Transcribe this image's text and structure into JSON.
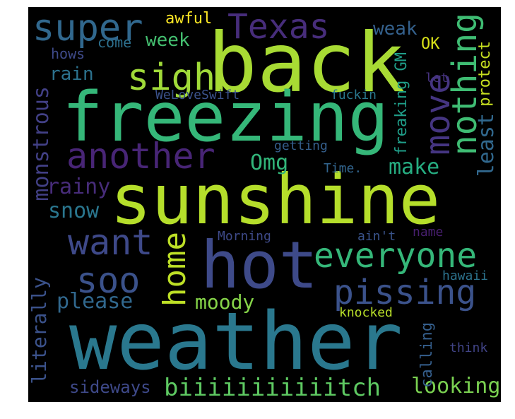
{
  "words": [
    {
      "text": "weather",
      "color": "#2a788e",
      "orientation": "horizontal"
    },
    {
      "text": "sunshine",
      "color": "#b5de2b",
      "orientation": "horizontal"
    },
    {
      "text": "back",
      "color": "#a8db34",
      "orientation": "horizontal"
    },
    {
      "text": "freezing",
      "color": "#35b779",
      "orientation": "horizontal"
    },
    {
      "text": "hot",
      "color": "#3e4a89",
      "orientation": "horizontal"
    },
    {
      "text": "Texas",
      "color": "#472d7b",
      "orientation": "horizontal"
    },
    {
      "text": "super",
      "color": "#31688e",
      "orientation": "horizontal"
    },
    {
      "text": "sigh",
      "color": "#a0da39",
      "orientation": "horizontal"
    },
    {
      "text": "another",
      "color": "#482576",
      "orientation": "horizontal"
    },
    {
      "text": "everyone",
      "color": "#35b779",
      "orientation": "horizontal"
    },
    {
      "text": "pissing",
      "color": "#3b528b",
      "orientation": "horizontal"
    },
    {
      "text": "want",
      "color": "#3e4989",
      "orientation": "horizontal"
    },
    {
      "text": "soo",
      "color": "#3b528b",
      "orientation": "horizontal"
    },
    {
      "text": "home",
      "color": "#bddf26",
      "orientation": "vertical"
    },
    {
      "text": "move",
      "color": "#453581",
      "orientation": "vertical"
    },
    {
      "text": "nothing",
      "color": "#3fbc73",
      "orientation": "vertical"
    },
    {
      "text": "biiiiiiiiiiitch",
      "color": "#5ec962",
      "orientation": "horizontal"
    },
    {
      "text": "make",
      "color": "#26ad81",
      "orientation": "horizontal"
    },
    {
      "text": "Omg",
      "color": "#32b67a",
      "orientation": "horizontal"
    },
    {
      "text": "please",
      "color": "#31688e",
      "orientation": "horizontal"
    },
    {
      "text": "moody",
      "color": "#86d549",
      "orientation": "horizontal"
    },
    {
      "text": "looking",
      "color": "#7ad151",
      "orientation": "horizontal"
    },
    {
      "text": "snow",
      "color": "#2a768e",
      "orientation": "horizontal"
    },
    {
      "text": "rainy",
      "color": "#472c7a",
      "orientation": "horizontal"
    },
    {
      "text": "rain",
      "color": "#2c728e",
      "orientation": "horizontal"
    },
    {
      "text": "week",
      "color": "#44bf70",
      "orientation": "horizontal"
    },
    {
      "text": "weak",
      "color": "#34618d",
      "orientation": "horizontal"
    },
    {
      "text": "awful",
      "color": "#fde725",
      "orientation": "horizontal"
    },
    {
      "text": "sideways",
      "color": "#3e4989",
      "orientation": "horizontal"
    },
    {
      "text": "monstrous",
      "color": "#424086",
      "orientation": "vertical"
    },
    {
      "text": "literally",
      "color": "#3b528b",
      "orientation": "vertical"
    },
    {
      "text": "least",
      "color": "#31688e",
      "orientation": "vertical"
    },
    {
      "text": "freaking GM",
      "color": "#1f9e89",
      "orientation": "vertical"
    },
    {
      "text": "protect",
      "color": "#c8e020",
      "orientation": "vertical"
    },
    {
      "text": "calling",
      "color": "#355f8d",
      "orientation": "vertical"
    },
    {
      "text": "hows",
      "color": "#3e4a89",
      "orientation": "horizontal"
    },
    {
      "text": "come",
      "color": "#2d708e",
      "orientation": "horizontal"
    },
    {
      "text": "OK",
      "color": "#d8e219",
      "orientation": "horizontal"
    },
    {
      "text": "let",
      "color": "#46327e",
      "orientation": "horizontal"
    },
    {
      "text": "WeLoveSwift",
      "color": "#3b528b",
      "orientation": "horizontal"
    },
    {
      "text": "fuckin",
      "color": "#2a788e",
      "orientation": "horizontal"
    },
    {
      "text": "getting",
      "color": "#355f8d",
      "orientation": "horizontal"
    },
    {
      "text": "Time.",
      "color": "#32658e",
      "orientation": "horizontal"
    },
    {
      "text": "Morning",
      "color": "#3e4a89",
      "orientation": "horizontal"
    },
    {
      "text": "ain't",
      "color": "#3a548c",
      "orientation": "horizontal"
    },
    {
      "text": "name",
      "color": "#481f70",
      "orientation": "horizontal"
    },
    {
      "text": "hawaii",
      "color": "#2c738e",
      "orientation": "horizontal"
    },
    {
      "text": "knocked",
      "color": "#b8de29",
      "orientation": "horizontal"
    },
    {
      "text": "think",
      "color": "#414487",
      "orientation": "horizontal"
    }
  ]
}
